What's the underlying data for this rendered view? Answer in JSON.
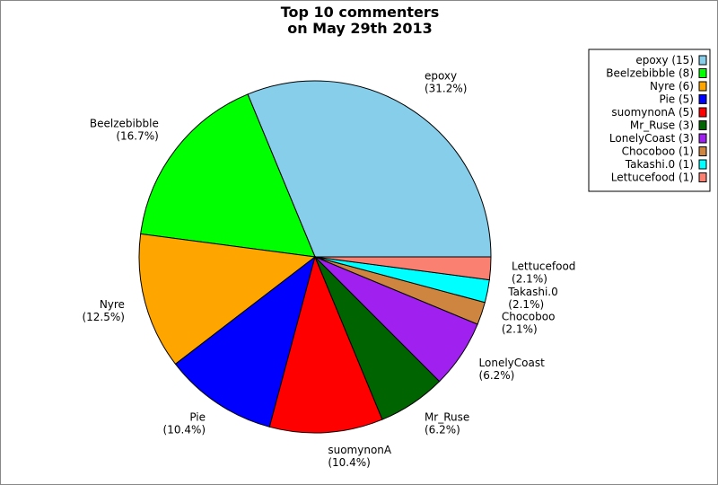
{
  "chart_data": {
    "type": "pie",
    "title": [
      "Top 10 commenters",
      "on May 29th 2013"
    ],
    "start_angle_deg": 0,
    "direction": "counterclockwise",
    "legend_position": "top-right",
    "slices": [
      {
        "label": "epoxy",
        "value": 15,
        "percent": "31.2%",
        "color": "#87ceeb"
      },
      {
        "label": "Beelzebibble",
        "value": 8,
        "percent": "16.7%",
        "color": "#00ff00"
      },
      {
        "label": "Nyre",
        "value": 6,
        "percent": "12.5%",
        "color": "#ffa500"
      },
      {
        "label": "Pie",
        "value": 5,
        "percent": "10.4%",
        "color": "#0000ff"
      },
      {
        "label": "suomynonA",
        "value": 5,
        "percent": "10.4%",
        "color": "#ff0000"
      },
      {
        "label": "Mr_Ruse",
        "value": 3,
        "percent": "6.2%",
        "color": "#006400"
      },
      {
        "label": "LonelyCoast",
        "value": 3,
        "percent": "6.2%",
        "color": "#a020f0"
      },
      {
        "label": "Chocoboo",
        "value": 1,
        "percent": "2.1%",
        "color": "#cd853f"
      },
      {
        "label": "Takashi.0",
        "value": 1,
        "percent": "2.1%",
        "color": "#00ffff"
      },
      {
        "label": "Lettucefood",
        "value": 1,
        "percent": "2.1%",
        "color": "#fa8072"
      }
    ],
    "legend": [
      "epoxy (15)",
      "Beelzebibble (8)",
      "Nyre (6)",
      "Pie (5)",
      "suomynonA (5)",
      "Mr_Ruse (3)",
      "LonelyCoast (3)",
      "Chocoboo (1)",
      "Takashi.0 (1)",
      "Lettucefood (1)"
    ]
  }
}
